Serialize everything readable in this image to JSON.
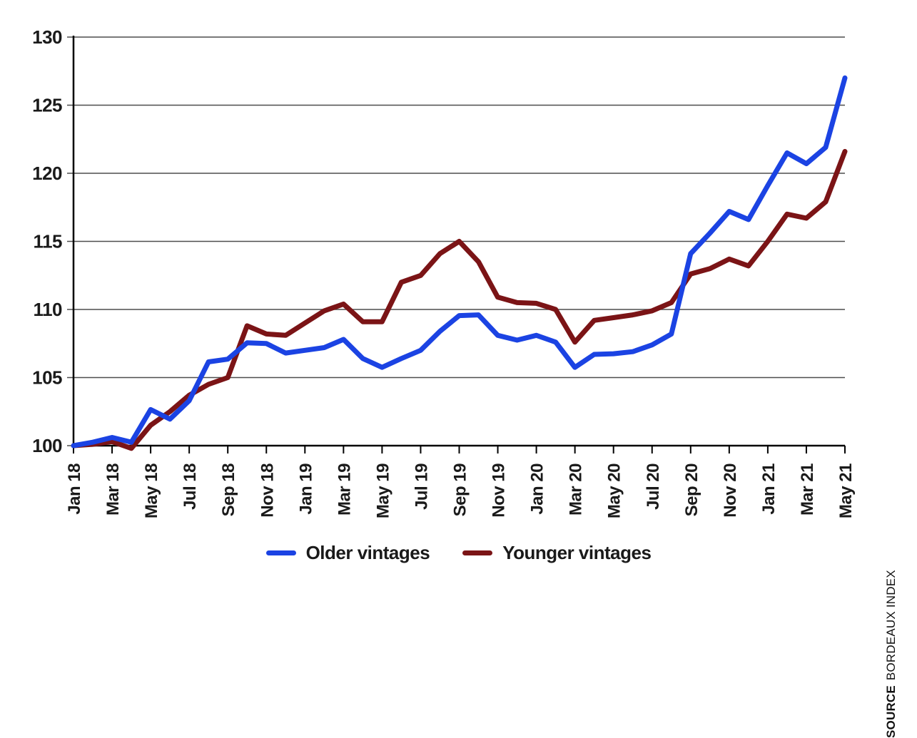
{
  "chart_data": {
    "type": "line",
    "title": "",
    "xlabel": "",
    "ylabel": "",
    "ylim": [
      100,
      130
    ],
    "yticks": [
      100,
      105,
      110,
      115,
      120,
      125,
      130
    ],
    "grid": "horizontal",
    "grid_color": "#4d4d4d",
    "axis_color": "#000000",
    "label_color": "#1a1a1a",
    "legend_position": "bottom-center",
    "x": [
      "Jan 18",
      "Feb 18",
      "Mar 18",
      "Apr 18",
      "May 18",
      "Jun 18",
      "Jul 18",
      "Aug 18",
      "Sep 18",
      "Oct 18",
      "Nov 18",
      "Dec 18",
      "Jan 19",
      "Feb 19",
      "Mar 19",
      "Apr 19",
      "May 19",
      "Jun 19",
      "Jul 19",
      "Aug 19",
      "Sep 19",
      "Oct 19",
      "Nov 19",
      "Dec 19",
      "Jan 20",
      "Feb 20",
      "Mar 20",
      "Apr 20",
      "May 20",
      "Jun 20",
      "Jul 20",
      "Aug 20",
      "Sep 20",
      "Oct 20",
      "Nov 20",
      "Dec 20",
      "Jan 21",
      "Feb 21",
      "Mar 21",
      "Apr 21",
      "May 21"
    ],
    "x_tick_labels": [
      "Jan 18",
      "Mar 18",
      "May 18",
      "Jul 18",
      "Sep 18",
      "Nov 18",
      "Jan 19",
      "Mar 19",
      "May 19",
      "Jul 19",
      "Sep 19",
      "Nov 19",
      "Jan 20",
      "Mar 20",
      "May 20",
      "Jul 20",
      "Sep 20",
      "Nov 20",
      "Jan 21",
      "Mar 21",
      "May 21"
    ],
    "series": [
      {
        "name": "Older vintages",
        "color": "#1b43e3",
        "values": [
          100.0,
          100.25,
          100.6,
          100.25,
          102.65,
          101.95,
          103.3,
          106.15,
          106.35,
          107.55,
          107.5,
          106.8,
          107.0,
          107.2,
          107.8,
          106.4,
          105.75,
          106.4,
          107.0,
          108.4,
          109.55,
          109.6,
          108.1,
          107.75,
          108.1,
          107.6,
          105.75,
          106.7,
          106.75,
          106.9,
          107.4,
          108.2,
          114.1,
          115.6,
          117.2,
          116.6,
          119.1,
          121.5,
          120.7,
          121.9,
          127.0
        ]
      },
      {
        "name": "Younger vintages",
        "color": "#7b1416",
        "values": [
          100.0,
          100.1,
          100.3,
          99.8,
          101.5,
          102.5,
          103.7,
          104.5,
          105.0,
          108.8,
          108.2,
          108.1,
          109.0,
          109.9,
          110.4,
          109.1,
          109.1,
          112.0,
          112.5,
          114.1,
          115.0,
          113.5,
          110.9,
          110.5,
          110.45,
          110.0,
          107.6,
          109.2,
          109.4,
          109.6,
          109.9,
          110.5,
          112.6,
          113.0,
          113.7,
          113.2,
          115.0,
          117.0,
          116.7,
          117.9,
          121.6
        ]
      }
    ]
  },
  "legend": {
    "older_label": "Older vintages",
    "younger_label": "Younger vintages"
  },
  "source": {
    "prefix": "SOURCE",
    "text": "BORDEAUX INDEX"
  }
}
